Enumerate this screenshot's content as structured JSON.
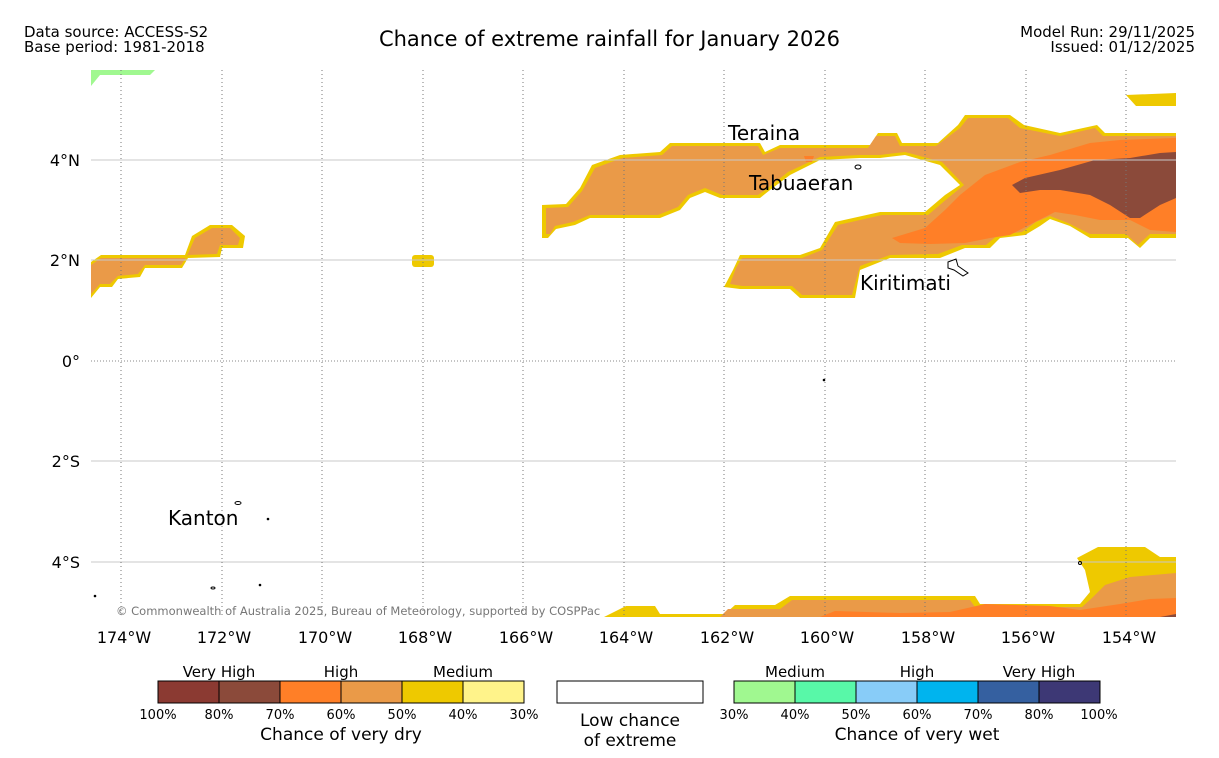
{
  "header": {
    "data_source": "Data source: ACCESS-S2",
    "base_period": "Base period: 1981-2018",
    "title": "Chance of extreme rainfall for January 2026",
    "model_run": "Model Run: 29/11/2025",
    "issued": "Issued: 01/12/2025"
  },
  "map": {
    "lat_labels": [
      "4°N",
      "2°N",
      "0°",
      "2°S",
      "4°S"
    ],
    "lon_labels": [
      "174°W",
      "172°W",
      "170°W",
      "168°W",
      "166°W",
      "164°W",
      "162°W",
      "160°W",
      "158°W",
      "156°W",
      "154°W"
    ],
    "places": [
      "Teraina",
      "Tabuaeran",
      "Kiritimati",
      "Kanton"
    ],
    "copyright": "© Commonwealth of Australia 2025, Bureau of Meteorology, supported by COSPPac"
  },
  "legend": {
    "dry": {
      "categories": [
        "Very High",
        "High",
        "Medium"
      ],
      "colors": [
        "#8b3a32",
        "#8b4a3a",
        "#ff7f27",
        "#ea9a48",
        "#eec900",
        "#fff38a"
      ],
      "ticks": [
        "100%",
        "80%",
        "70%",
        "60%",
        "50%",
        "40%",
        "30%"
      ],
      "caption": "Chance of very dry"
    },
    "low": {
      "line1": "Low chance",
      "line2": "of extreme"
    },
    "wet": {
      "categories": [
        "Medium",
        "High",
        "Very High"
      ],
      "colors": [
        "#a0f890",
        "#58f8a8",
        "#88ccf8",
        "#00b4ee",
        "#3560a0",
        "#3d3875"
      ],
      "ticks": [
        "30%",
        "40%",
        "50%",
        "60%",
        "70%",
        "80%",
        "100%"
      ],
      "caption": "Chance of very wet"
    }
  }
}
